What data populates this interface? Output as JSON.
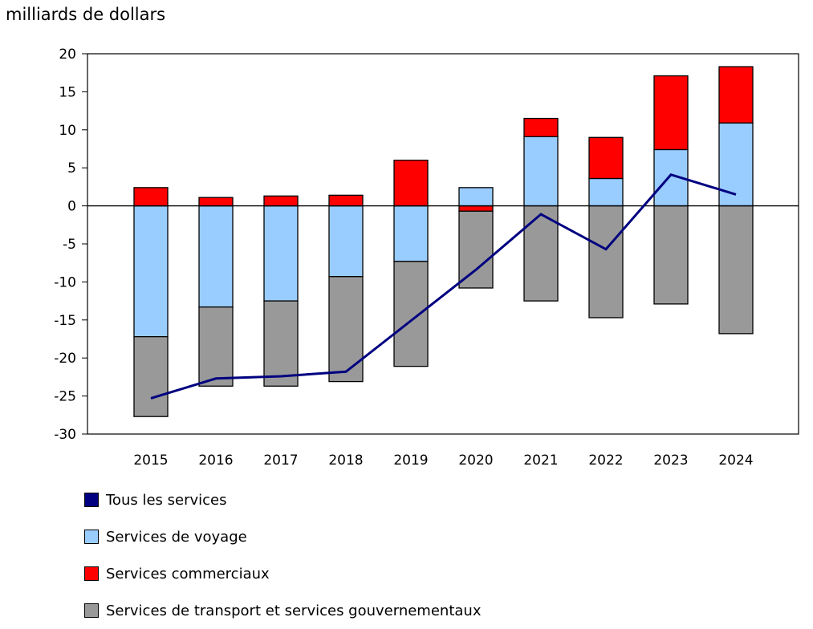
{
  "chart_data": {
    "type": "bar",
    "stacked": true,
    "ylabel": "milliards de dollars",
    "ylim": [
      -30,
      20
    ],
    "yticks": [
      20,
      15,
      10,
      5,
      0,
      -5,
      -10,
      -15,
      -20,
      -25,
      -30
    ],
    "categories": [
      "2015",
      "2016",
      "2017",
      "2018",
      "2019",
      "2020",
      "2021",
      "2022",
      "2023",
      "2024"
    ],
    "series": [
      {
        "name": "Services de voyage",
        "kind": "bar",
        "color": "#99ccff",
        "values": [
          -17.2,
          -13.3,
          -12.5,
          -9.3,
          -7.3,
          2.4,
          9.1,
          3.6,
          7.4,
          10.9
        ]
      },
      {
        "name": "Services commerciaux",
        "kind": "bar",
        "color": "#ff0000",
        "values": [
          2.4,
          1.1,
          1.3,
          1.4,
          6.0,
          -0.7,
          2.4,
          5.4,
          9.7,
          7.4
        ]
      },
      {
        "name": "Services de transport et services gouvernementaux",
        "kind": "bar",
        "color": "#999999",
        "values": [
          -10.5,
          -10.4,
          -11.2,
          -13.8,
          -13.8,
          -10.1,
          -12.5,
          -14.7,
          -12.9,
          -16.8
        ]
      },
      {
        "name": "Tous les services",
        "kind": "line",
        "color": "#000080",
        "values": [
          -25.3,
          -22.7,
          -22.4,
          -21.8,
          -15.1,
          -8.4,
          -1.1,
          -5.7,
          4.1,
          1.5
        ]
      }
    ],
    "legend": [
      {
        "label": "Tous les services",
        "color": "#000080"
      },
      {
        "label": "Services de voyage",
        "color": "#99ccff"
      },
      {
        "label": "Services commerciaux",
        "color": "#ff0000"
      },
      {
        "label": "Services de transport et services gouvernementaux",
        "color": "#999999"
      }
    ]
  }
}
